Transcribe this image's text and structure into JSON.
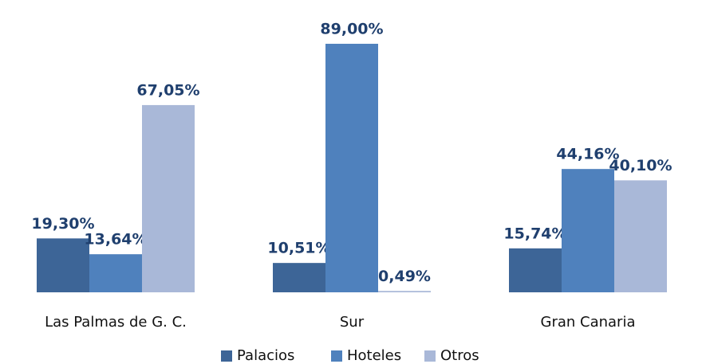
{
  "chart_data": {
    "type": "bar",
    "categories": [
      "Las Palmas de G. C.",
      "Sur",
      "Gran Canaria"
    ],
    "series": [
      {
        "name": "Palacios",
        "color": "#3d6597",
        "values": [
          19.3,
          10.51,
          15.74
        ],
        "value_labels": [
          "19,30%",
          "10,51%",
          "15,74%"
        ]
      },
      {
        "name": "Hoteles",
        "color": "#4f81bd",
        "values": [
          13.64,
          89.0,
          44.16
        ],
        "value_labels": [
          "13,64%",
          "89,00%",
          "44,16%"
        ]
      },
      {
        "name": "Otros",
        "color": "#a9b8d8",
        "values": [
          67.05,
          0.49,
          40.1
        ],
        "value_labels": [
          "67,05%",
          "0,49%",
          "40,10%"
        ]
      }
    ],
    "legend": "bottom"
  }
}
